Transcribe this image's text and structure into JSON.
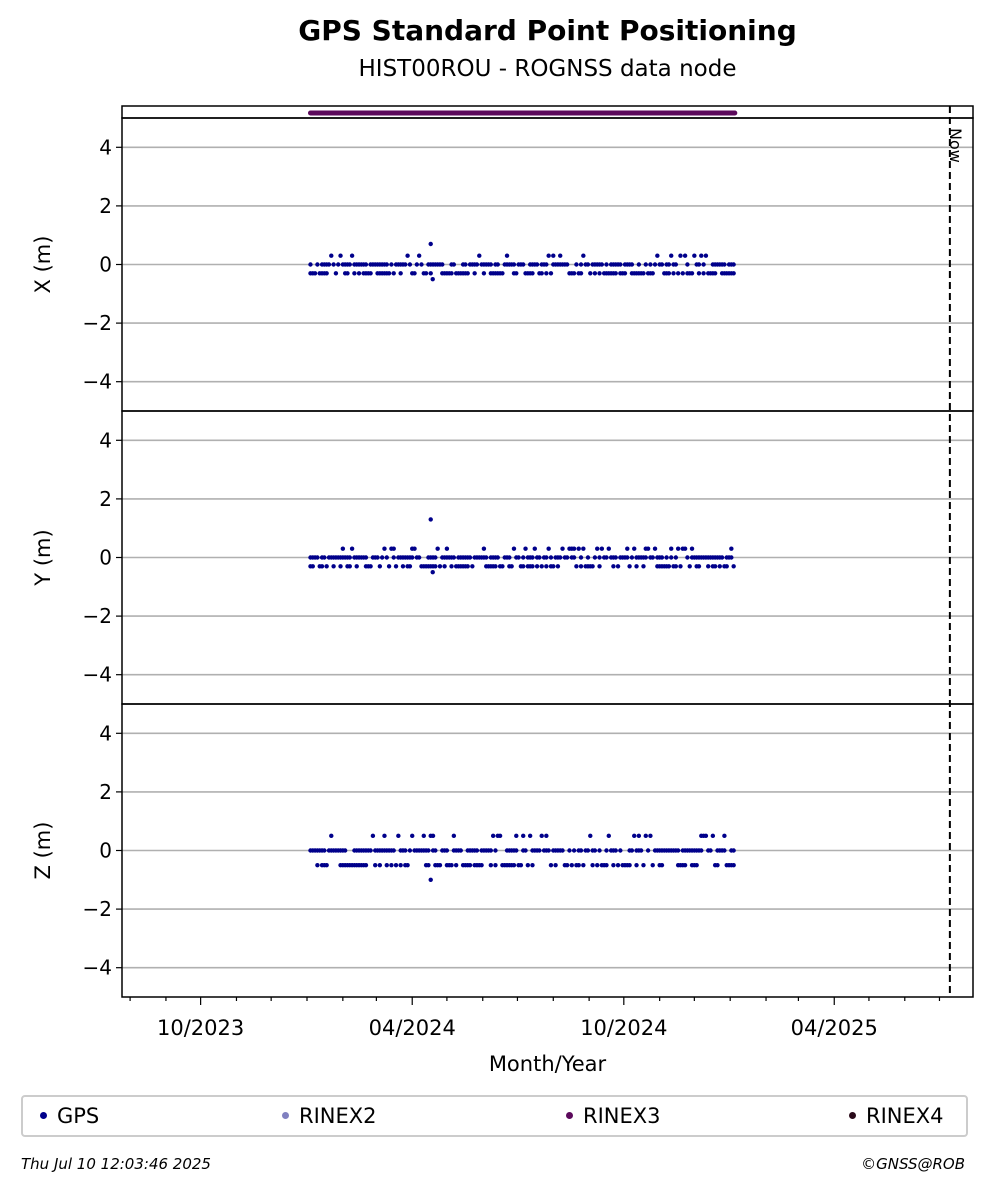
{
  "chart_data": {
    "type": "scatter",
    "title": "GPS Standard Point Positioning",
    "subtitle": "HIST00ROU - ROGNSS data node",
    "xlabel": "Month/Year",
    "x_ticks": [
      "10/2023",
      "04/2024",
      "10/2024",
      "04/2025"
    ],
    "x_range": [
      "2023-07-25",
      "2025-07-30"
    ],
    "data_span": [
      "2024-01-04",
      "2025-01-05"
    ],
    "now_marker": {
      "label": "Now",
      "date": "2025-07-10"
    },
    "rinex_bar": {
      "series": "RINEX3",
      "start": "2024-01-04",
      "end": "2025-01-05",
      "color": "#5c0a5c"
    },
    "y_ticks": [
      "4",
      "2",
      "0",
      "−2",
      "−4"
    ],
    "ylim": [
      -5,
      5
    ],
    "grid": "horizontal",
    "panels": [
      {
        "ylabel": "X (m)",
        "typical_values": [
          -0.3,
          0,
          0.3
        ],
        "outliers": [
          0.7,
          -0.5
        ]
      },
      {
        "ylabel": "Y (m)",
        "typical_values": [
          -0.3,
          0,
          0.3
        ],
        "outliers": [
          1.3,
          -0.5
        ]
      },
      {
        "ylabel": "Z (m)",
        "typical_values": [
          -0.5,
          0,
          0.5
        ],
        "outliers": [
          -1.0
        ]
      }
    ],
    "series": [
      {
        "name": "GPS",
        "color": "#00008b"
      },
      {
        "name": "RINEX2",
        "color": "#8080c0"
      },
      {
        "name": "RINEX3",
        "color": "#5c0a5c"
      },
      {
        "name": "RINEX4",
        "color": "#2a0a1a"
      }
    ],
    "legend_position": "bottom"
  },
  "footer": {
    "timestamp": "Thu Jul 10 12:03:46 2025",
    "copyright": "©GNSS@ROB"
  }
}
